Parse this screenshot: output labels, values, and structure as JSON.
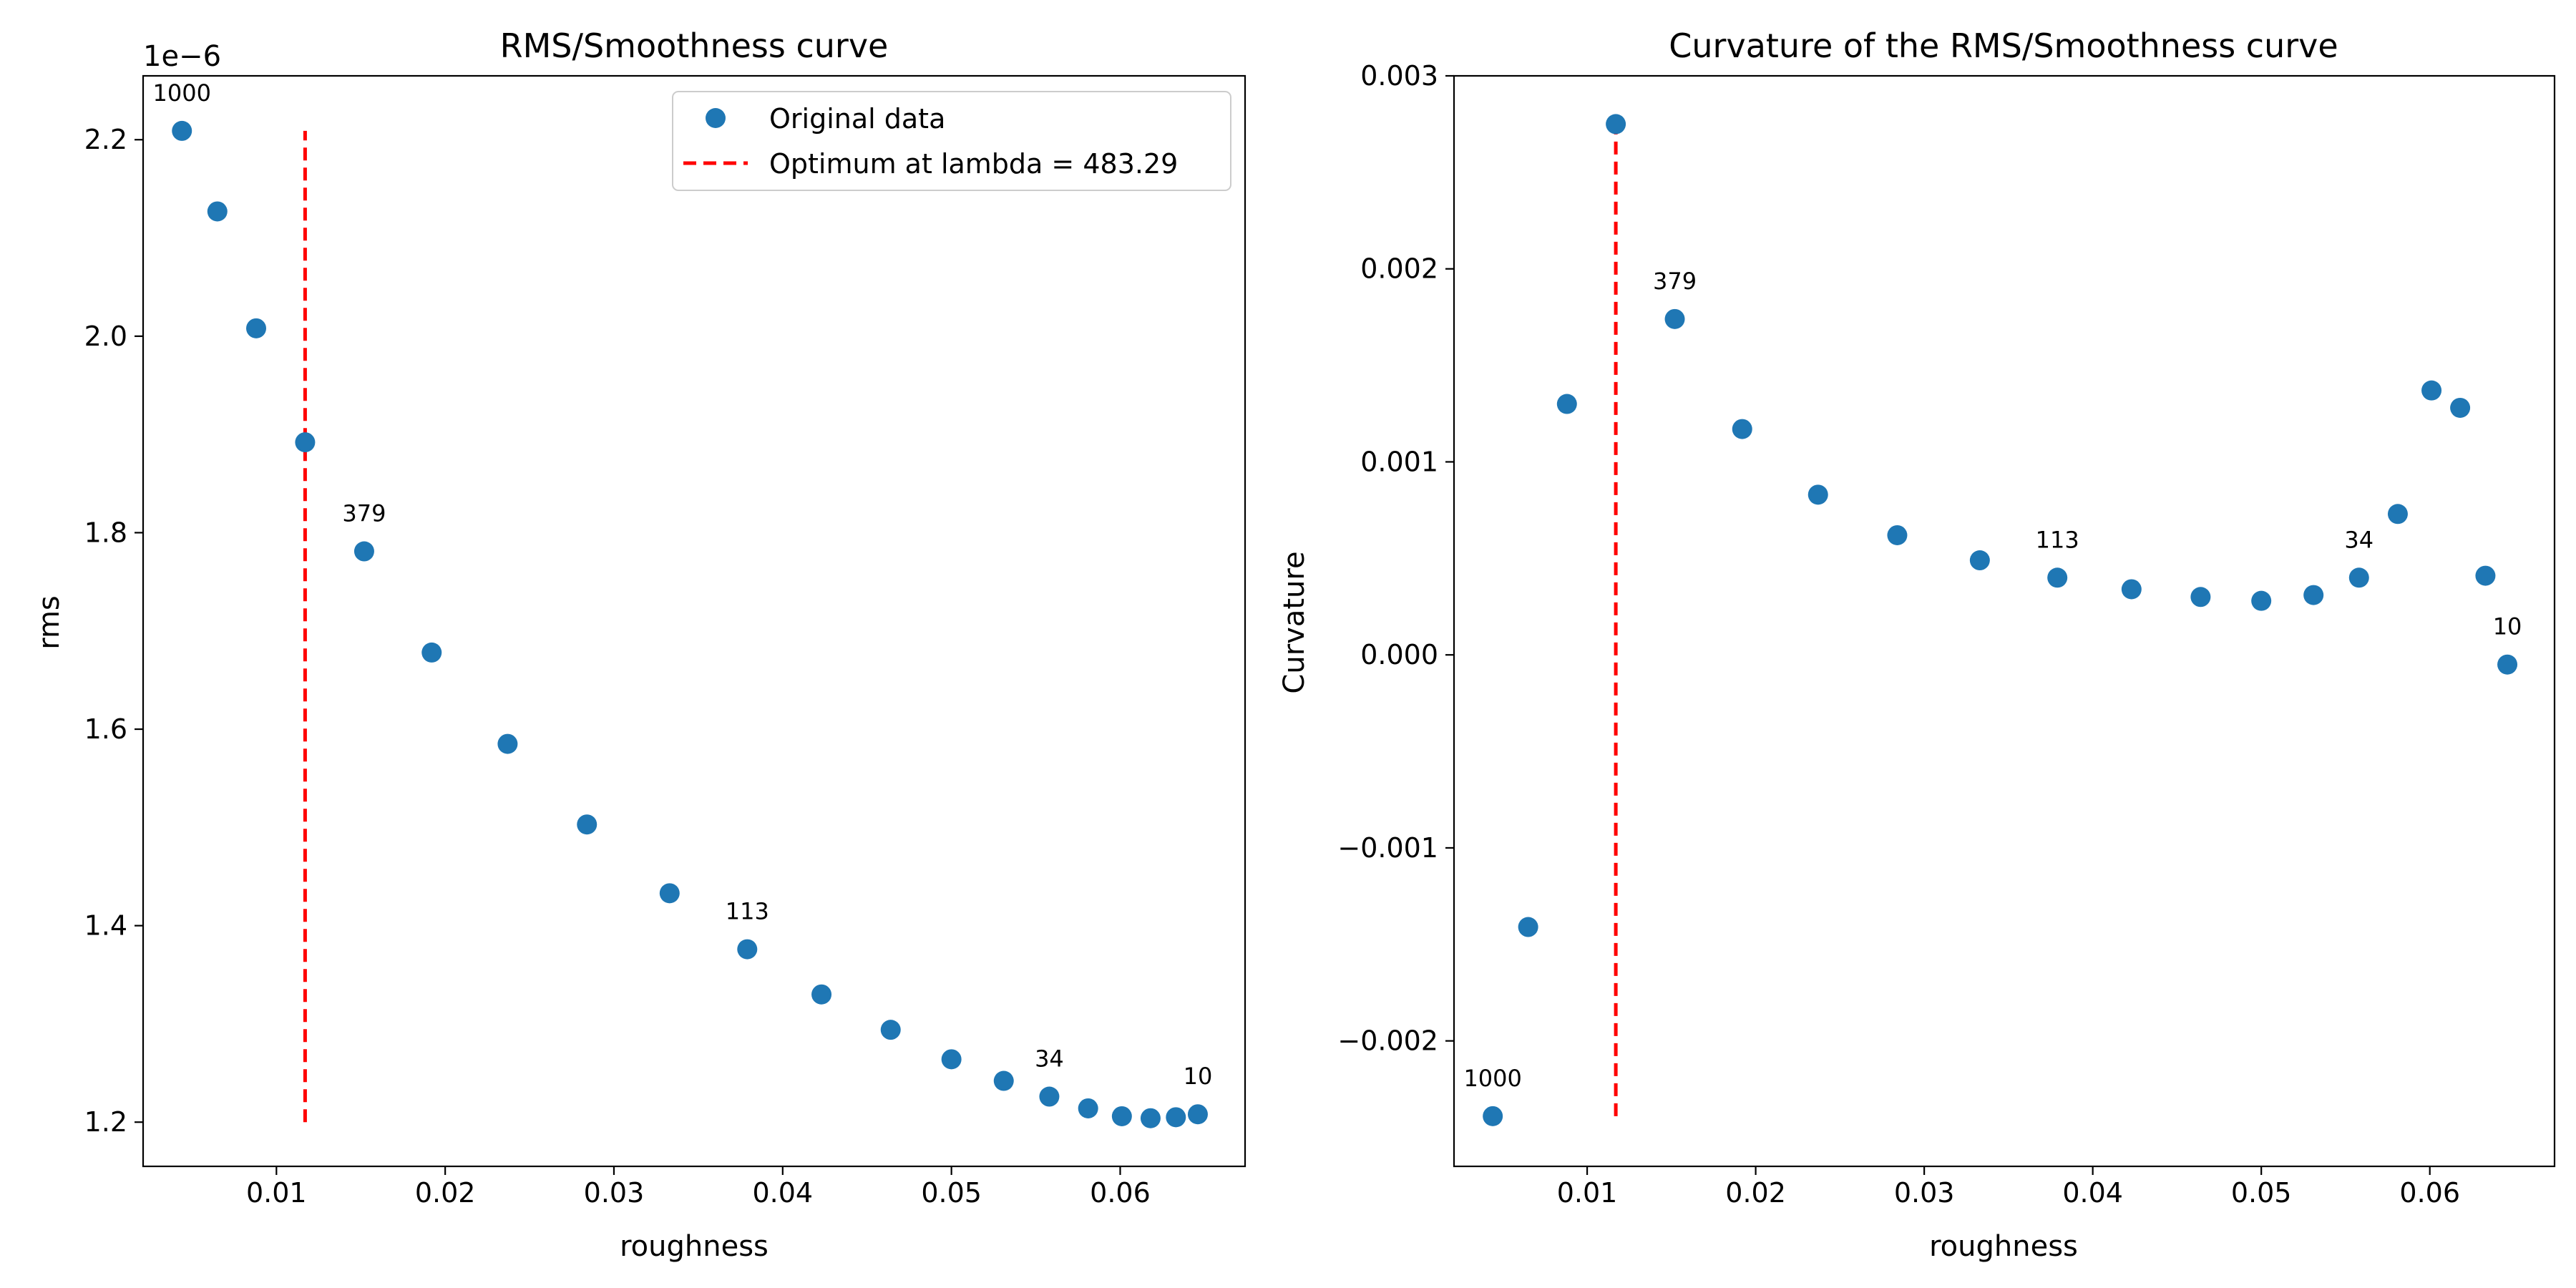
{
  "chart_data": [
    {
      "type": "scatter",
      "title": "RMS/Smoothness curve",
      "xlabel": "roughness",
      "ylabel": "rms",
      "offset_text": "1e−6",
      "xlim": [
        0.0021,
        0.0674
      ],
      "ylim": [
        1.155,
        2.265
      ],
      "xticks": [
        0.01,
        0.02,
        0.03,
        0.04,
        0.05,
        0.06
      ],
      "xtick_labels": [
        "0.01",
        "0.02",
        "0.03",
        "0.04",
        "0.05",
        "0.06"
      ],
      "yticks": [
        1.2,
        1.4,
        1.6,
        1.8,
        2.0,
        2.2
      ],
      "ytick_labels": [
        "1.2",
        "1.4",
        "1.6",
        "1.8",
        "2.0",
        "2.2"
      ],
      "series": [
        {
          "name": "Original data",
          "color": "#1f77b4",
          "x": [
            0.0044,
            0.0065,
            0.0088,
            0.0117,
            0.0152,
            0.0192,
            0.0237,
            0.0284,
            0.0333,
            0.0379,
            0.0423,
            0.0464,
            0.05,
            0.0531,
            0.0558,
            0.0581,
            0.0601,
            0.0618,
            0.0633,
            0.0646
          ],
          "y": [
            2.209,
            2.127,
            2.008,
            1.892,
            1.781,
            1.678,
            1.585,
            1.503,
            1.433,
            1.376,
            1.33,
            1.294,
            1.264,
            1.242,
            1.226,
            1.214,
            1.206,
            1.204,
            1.205,
            1.208
          ]
        }
      ],
      "vline": {
        "name": "Optimum at lambda = 483.29",
        "x": 0.0117,
        "y_range": [
          1.2,
          2.209
        ],
        "color": "#ff0000"
      },
      "annotations": [
        {
          "text": "1000",
          "x": 0.0044,
          "y": 2.209
        },
        {
          "text": "379",
          "x": 0.0152,
          "y": 1.781
        },
        {
          "text": "113",
          "x": 0.0379,
          "y": 1.376
        },
        {
          "text": "34",
          "x": 0.0558,
          "y": 1.226
        },
        {
          "text": "10",
          "x": 0.0646,
          "y": 1.208
        }
      ],
      "legend": {
        "position": "upper right",
        "entries": [
          {
            "label": "Original data",
            "kind": "marker",
            "color": "#1f77b4"
          },
          {
            "label": "Optimum at lambda = 483.29",
            "kind": "dashed-line",
            "color": "#ff0000"
          }
        ]
      },
      "grid": false
    },
    {
      "type": "scatter",
      "title": "Curvature of the RMS/Smoothness curve",
      "xlabel": "roughness",
      "ylabel": "Curvature",
      "xlim": [
        0.0021,
        0.0674
      ],
      "ylim": [
        -0.00265,
        0.003
      ],
      "xticks": [
        0.01,
        0.02,
        0.03,
        0.04,
        0.05,
        0.06
      ],
      "xtick_labels": [
        "0.01",
        "0.02",
        "0.03",
        "0.04",
        "0.05",
        "0.06"
      ],
      "yticks": [
        -0.002,
        -0.001,
        0.0,
        0.001,
        0.002,
        0.003
      ],
      "ytick_labels": [
        "−0.002",
        "−0.001",
        "0.000",
        "0.001",
        "0.002",
        "0.003"
      ],
      "series": [
        {
          "name": "",
          "color": "#1f77b4",
          "x": [
            0.0044,
            0.0065,
            0.0088,
            0.0117,
            0.0152,
            0.0192,
            0.0237,
            0.0284,
            0.0333,
            0.0379,
            0.0423,
            0.0464,
            0.05,
            0.0531,
            0.0558,
            0.0581,
            0.0601,
            0.0618,
            0.0633,
            0.0646
          ],
          "y": [
            -0.00239,
            -0.00141,
            0.0013,
            0.00275,
            0.00174,
            0.00117,
            0.00083,
            0.00062,
            0.00049,
            0.0004,
            0.00034,
            0.0003,
            0.00028,
            0.00031,
            0.0004,
            0.00073,
            0.00137,
            0.00128,
            0.00041,
            -5e-05
          ]
        }
      ],
      "vline": {
        "x": 0.0117,
        "y_range": [
          -0.00239,
          0.00275
        ],
        "color": "#ff0000"
      },
      "annotations": [
        {
          "text": "1000",
          "x": 0.0044,
          "y": -0.00239
        },
        {
          "text": "379",
          "x": 0.0152,
          "y": 0.00174
        },
        {
          "text": "113",
          "x": 0.0379,
          "y": 0.0004
        },
        {
          "text": "34",
          "x": 0.0558,
          "y": 0.0004
        },
        {
          "text": "10",
          "x": 0.0646,
          "y": -5e-05
        }
      ],
      "grid": false
    }
  ]
}
